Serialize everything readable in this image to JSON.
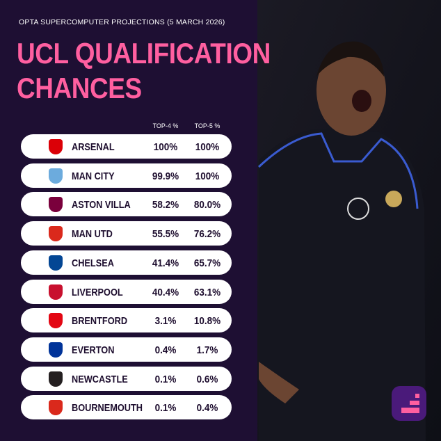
{
  "header": {
    "subtitle": "OPTA SUPERCOMPUTER PROJECTIONS (5 MARCH 2026)",
    "title_lines": [
      "UCL QUALIFICATION",
      "CHANCES"
    ]
  },
  "table": {
    "columns": [
      "TOP-4 %",
      "TOP-5 %"
    ],
    "rows": [
      [
        "ARSENAL",
        "100%",
        "100%"
      ],
      [
        "MAN CITY",
        "99.9%",
        "100%"
      ],
      [
        "ASTON VILLA",
        "58.2%",
        "80.0%"
      ],
      [
        "MAN UTD",
        "55.5%",
        "76.2%"
      ],
      [
        "CHELSEA",
        "41.4%",
        "65.7%"
      ],
      [
        "LIVERPOOL",
        "40.4%",
        "63.1%"
      ],
      [
        "BRENTFORD",
        "3.1%",
        "10.8%"
      ],
      [
        "EVERTON",
        "0.4%",
        "1.7%"
      ],
      [
        "NEWCASTLE",
        "0.1%",
        "0.6%"
      ],
      [
        "BOURNEMOUTH",
        "0.1%",
        "0.4%"
      ]
    ]
  }
}
